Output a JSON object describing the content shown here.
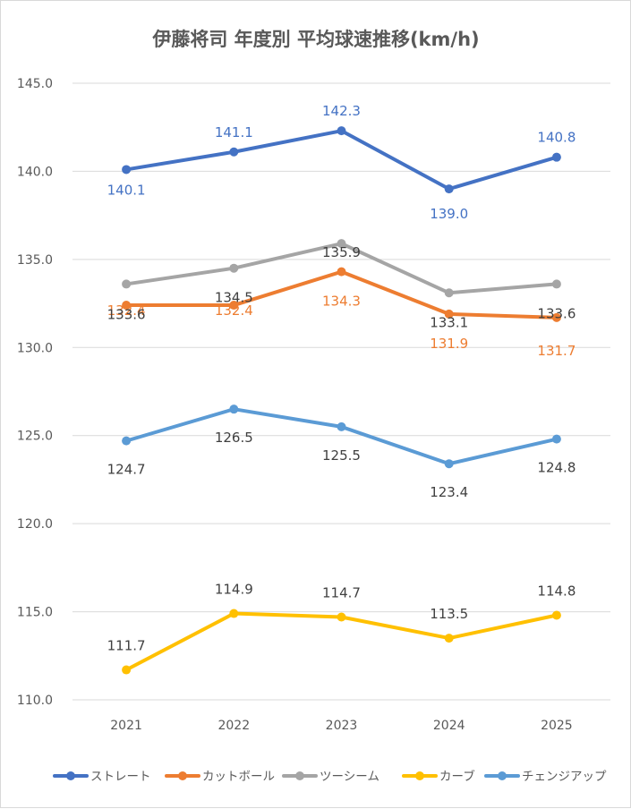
{
  "chart_data": {
    "type": "line",
    "title": "伊藤将司 年度別 平均球速推移(km/h)",
    "xlabel": "",
    "ylabel": "",
    "categories": [
      "2021",
      "2022",
      "2023",
      "2024",
      "2025"
    ],
    "ylim": [
      110.0,
      145.0
    ],
    "yticks": [
      "110.0",
      "115.0",
      "120.0",
      "125.0",
      "130.0",
      "135.0",
      "140.0",
      "145.0"
    ],
    "grid": true,
    "legend_position": "bottom",
    "series": [
      {
        "name": "ストレート",
        "color": "#4472c4",
        "label_color": "#4472c4",
        "values": [
          140.1,
          141.1,
          142.3,
          139.0,
          140.8
        ],
        "labels": [
          "140.1",
          "141.1",
          "142.3",
          "139.0",
          "140.8"
        ]
      },
      {
        "name": "カットボール",
        "color": "#ed7d31",
        "label_color": "#ed7d31",
        "values": [
          132.4,
          132.4,
          134.3,
          131.9,
          131.7
        ],
        "labels": [
          "132.4",
          "132.4",
          "134.3",
          "131.9",
          "131.7"
        ]
      },
      {
        "name": "ツーシーム",
        "color": "#a5a5a5",
        "label_color": "#404040",
        "values": [
          133.6,
          134.5,
          135.9,
          133.1,
          133.6
        ],
        "labels": [
          "133.6",
          "134.5",
          "135.9",
          "133.1",
          "133.6"
        ]
      },
      {
        "name": "カーブ",
        "color": "#ffc000",
        "label_color": "#404040",
        "values": [
          111.7,
          114.9,
          114.7,
          113.5,
          114.8
        ],
        "labels": [
          "111.7",
          "114.9",
          "114.7",
          "113.5",
          "114.8"
        ]
      },
      {
        "name": "チェンジアップ",
        "color": "#5b9bd5",
        "label_color": "#404040",
        "values": [
          124.7,
          126.5,
          125.5,
          123.4,
          124.8
        ],
        "labels": [
          "124.7",
          "126.5",
          "125.5",
          "123.4",
          "124.8"
        ]
      }
    ]
  }
}
